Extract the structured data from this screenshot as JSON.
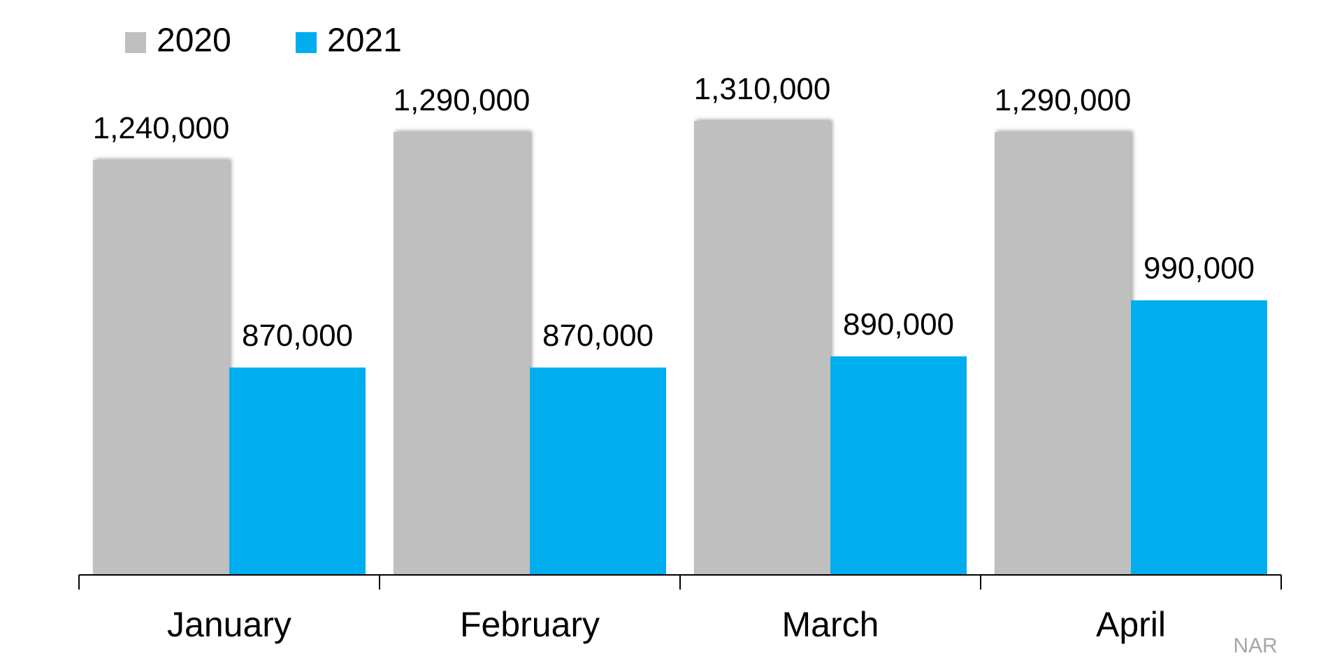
{
  "chart_data": {
    "type": "bar",
    "categories": [
      "January",
      "February",
      "March",
      "April"
    ],
    "series": [
      {
        "name": "2020",
        "color": "#bfbfbf",
        "values": [
          1240000,
          1290000,
          1310000,
          1290000
        ],
        "value_labels": [
          "1,240,000",
          "1,290,000",
          "1,310,000",
          "1,290,000"
        ]
      },
      {
        "name": "2021",
        "color": "#00adef",
        "values": [
          870000,
          870000,
          890000,
          990000
        ],
        "value_labels": [
          "870,000",
          "870,000",
          "890,000",
          "990,000"
        ]
      }
    ],
    "ylim": [
      500000,
      1400000
    ],
    "source": "NAR"
  }
}
